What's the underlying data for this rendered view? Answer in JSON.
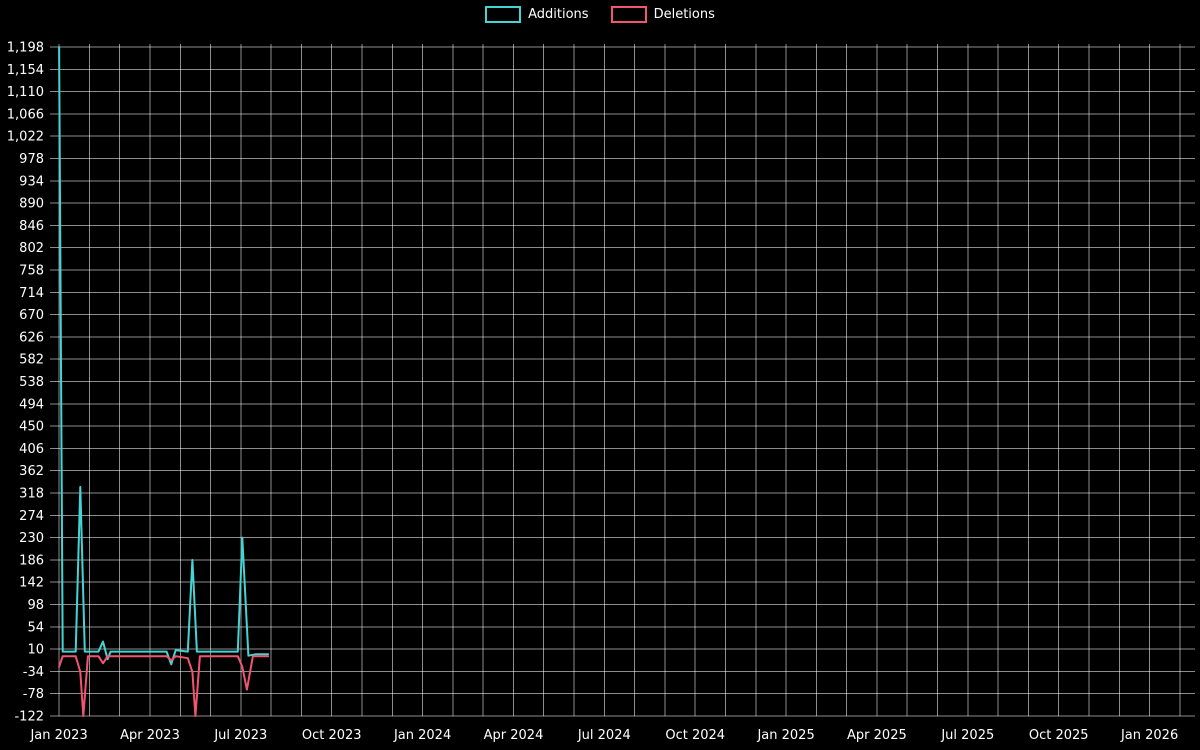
{
  "chart_data": {
    "type": "line",
    "title": "",
    "background": "#000000",
    "text_color": "#ffffff",
    "grid": true,
    "legend_position": "top-center",
    "legend": [
      {
        "label": "Additions",
        "color": "#45d4d4"
      },
      {
        "label": "Deletions",
        "color": "#f25570"
      }
    ],
    "ylim": [
      -122,
      1198
    ],
    "y_tick_step": 44,
    "y_tick_labels": [
      "1,198",
      "1,154",
      "1,110",
      "1,066",
      "1,022",
      "978",
      "934",
      "890",
      "846",
      "802",
      "758",
      "714",
      "670",
      "626",
      "582",
      "538",
      "494",
      "450",
      "406",
      "362",
      "318",
      "274",
      "230",
      "186",
      "142",
      "98",
      "54",
      "10",
      "-34",
      "-78",
      "-122"
    ],
    "xlim": [
      -0.3,
      37.5
    ],
    "x_unit": "months since Jan 2023",
    "x_ticks": [
      {
        "label": "Jan 2023",
        "m": 0
      },
      {
        "label": "Apr 2023",
        "m": 3
      },
      {
        "label": "Jul 2023",
        "m": 6
      },
      {
        "label": "Oct 2023",
        "m": 9
      },
      {
        "label": "Jan 2024",
        "m": 12
      },
      {
        "label": "Apr 2024",
        "m": 15
      },
      {
        "label": "Jul 2024",
        "m": 18
      },
      {
        "label": "Oct 2024",
        "m": 21
      },
      {
        "label": "Jan 2025",
        "m": 24
      },
      {
        "label": "Apr 2025",
        "m": 27
      },
      {
        "label": "Jul 2025",
        "m": 30
      },
      {
        "label": "Oct 2025",
        "m": 33
      },
      {
        "label": "Jan 2026",
        "m": 36
      }
    ],
    "series": [
      {
        "name": "Additions",
        "color": "#45d4d4",
        "points": [
          [
            0,
            1198
          ],
          [
            0.12,
            5
          ],
          [
            0.55,
            5
          ],
          [
            0.7,
            330
          ],
          [
            0.85,
            5
          ],
          [
            1.3,
            5
          ],
          [
            1.45,
            25
          ],
          [
            1.6,
            -10
          ],
          [
            1.7,
            5
          ],
          [
            3.55,
            5
          ],
          [
            3.7,
            -20
          ],
          [
            3.85,
            8
          ],
          [
            4.25,
            5
          ],
          [
            4.4,
            186
          ],
          [
            4.55,
            5
          ],
          [
            5.9,
            5
          ],
          [
            6.05,
            230
          ],
          [
            6.25,
            -3
          ],
          [
            6.5,
            0
          ],
          [
            6.9,
            0
          ]
        ]
      },
      {
        "name": "Deletions",
        "color": "#f25570",
        "points": [
          [
            0,
            -25
          ],
          [
            0.12,
            -4
          ],
          [
            0.55,
            -4
          ],
          [
            0.7,
            -35
          ],
          [
            0.8,
            -122
          ],
          [
            0.95,
            -4
          ],
          [
            1.3,
            -4
          ],
          [
            1.45,
            -18
          ],
          [
            1.6,
            -4
          ],
          [
            3.55,
            -4
          ],
          [
            3.7,
            -12
          ],
          [
            3.85,
            -4
          ],
          [
            4.25,
            -8
          ],
          [
            4.4,
            -35
          ],
          [
            4.5,
            -122
          ],
          [
            4.65,
            -4
          ],
          [
            5.9,
            -4
          ],
          [
            6.05,
            -25
          ],
          [
            6.2,
            -70
          ],
          [
            6.4,
            -4
          ],
          [
            6.9,
            -4
          ]
        ]
      }
    ]
  }
}
